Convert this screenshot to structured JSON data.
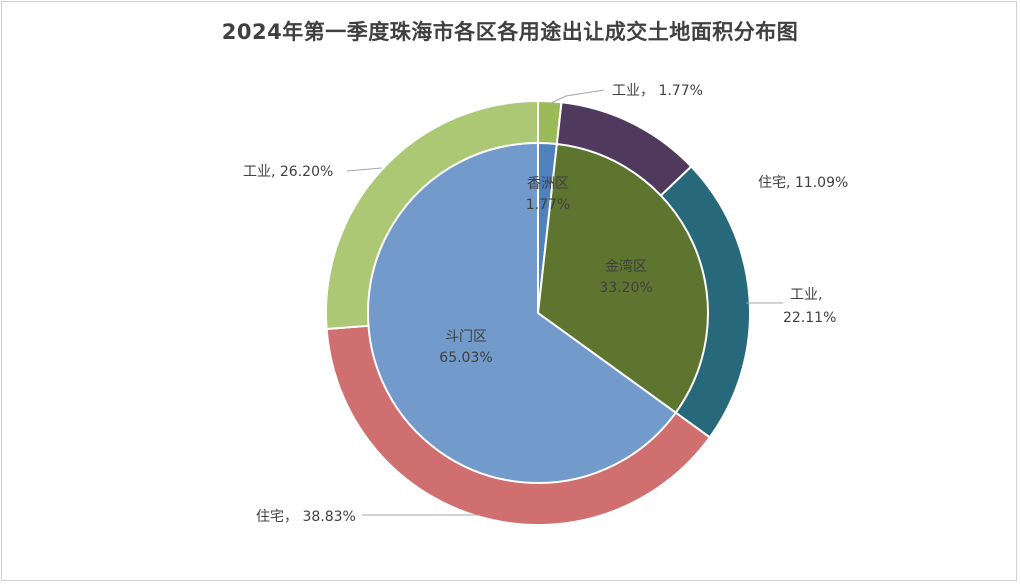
{
  "chart_data": {
    "type": "pie",
    "subtype": "nested-pie",
    "title": "2024年第一季度珠海市各区各用途出让成交土地面积分布图",
    "inner": {
      "categories": [
        "香洲区",
        "金湾区",
        "斗门区"
      ],
      "values": [
        1.77,
        33.2,
        65.03
      ],
      "labels": [
        "1.77%",
        "33.20%",
        "65.03%"
      ],
      "colors": [
        "#4f81bd",
        "#5e7530",
        "#729aca"
      ]
    },
    "outer": {
      "categories": [
        "工业",
        "住宅",
        "工业",
        "住宅",
        "工业"
      ],
      "values": [
        1.77,
        11.09,
        22.11,
        38.83,
        26.2
      ],
      "label_names": [
        "工业，",
        "住宅,",
        "工业,",
        "住宅，",
        "工业,"
      ],
      "label_values": [
        "1.77%",
        "11.09%",
        "22.11%",
        "38.83%",
        "26.20%"
      ],
      "colors": [
        "#9bbb59",
        "#4f3a5e",
        "#27697a",
        "#d06f6f",
        "#acc874"
      ]
    }
  }
}
